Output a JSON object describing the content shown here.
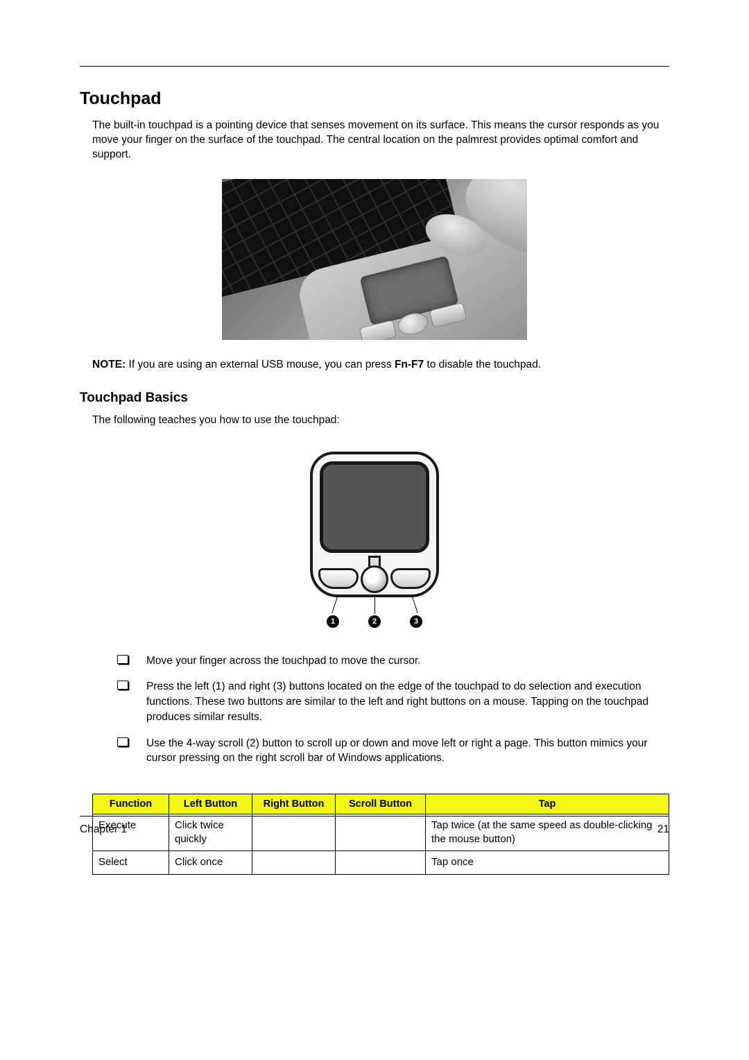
{
  "section": {
    "title": "Touchpad"
  },
  "intro": "The built-in touchpad is a pointing device that senses movement on its surface. This means the cursor responds as you move your finger on the surface of the touchpad. The central location on the palmrest provides optimal comfort and support.",
  "note": {
    "label": "NOTE:",
    "before": "If you are using an external USB mouse, you can press ",
    "key": "Fn-F7",
    "after": " to disable the touchpad."
  },
  "subsection": {
    "title": "Touchpad Basics"
  },
  "lead": "The following teaches you how to use the touchpad:",
  "callouts": {
    "c1": "1",
    "c2": "2",
    "c3": "3"
  },
  "bullets": {
    "b1": "Move your finger across the touchpad to move the cursor.",
    "b2": "Press the left (1) and right (3) buttons located on the edge of the touchpad to do selection and execution functions. These two buttons are similar to the left and right buttons on a mouse. Tapping on the touchpad produces similar results.",
    "b3": "Use the 4-way scroll (2) button to scroll up or down and move left or right a page. This button mimics your cursor pressing on the right scroll bar of Windows applications."
  },
  "table": {
    "header_bg": "#f4f615",
    "headers": {
      "fn": "Function",
      "lb": "Left Button",
      "rb": "Right Button",
      "sb": "Scroll Button",
      "tap": "Tap"
    },
    "rows": [
      {
        "fn": "Execute",
        "lb": "Click twice quickly",
        "rb": "",
        "sb": "",
        "tap": "Tap twice (at the same speed as double-clicking the mouse button)"
      },
      {
        "fn": "Select",
        "lb": "Click once",
        "rb": "",
        "sb": "",
        "tap": "Tap once"
      }
    ]
  },
  "footer": {
    "chapter": "Chapter 1",
    "page": "21"
  }
}
